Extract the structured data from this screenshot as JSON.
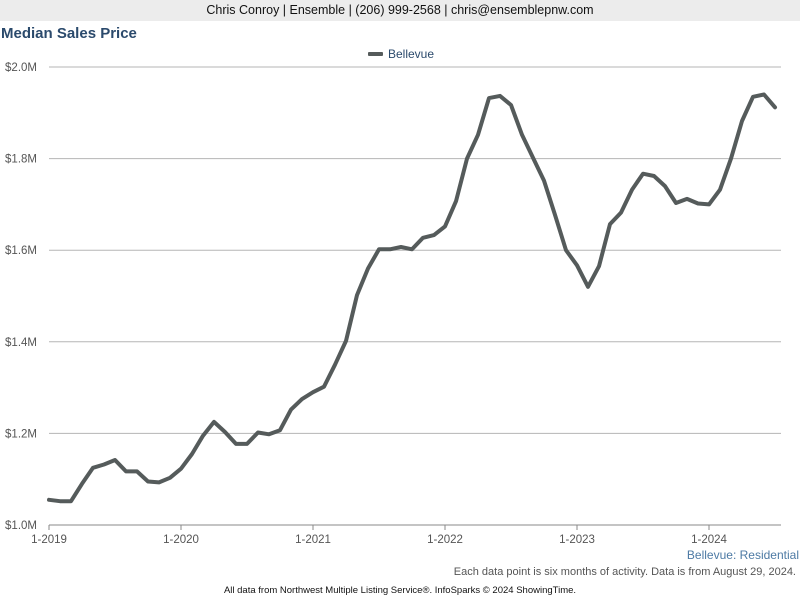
{
  "header": {
    "contact": "Chris Conroy | Ensemble | (206) 999-2568 | chris@ensemblepnw.com"
  },
  "chart_data": {
    "type": "line",
    "title": "Median Sales Price",
    "xlabel": "",
    "ylabel": "",
    "x_ticks": [
      "1-2019",
      "1-2020",
      "1-2021",
      "1-2022",
      "1-2023",
      "1-2024"
    ],
    "y_ticks": [
      "$1.0M",
      "$1.2M",
      "$1.4M",
      "$1.6M",
      "$1.8M",
      "$2.0M"
    ],
    "y_tick_values": [
      1.0,
      1.2,
      1.4,
      1.6,
      1.8,
      2.0
    ],
    "ylim": [
      1.0,
      2.0
    ],
    "xlim": [
      "2019-01",
      "2024-07"
    ],
    "grid": "horizontal",
    "legend_position": "top-center",
    "series": [
      {
        "name": "Bellevue",
        "color": "#555b5b",
        "x": [
          "2019-01",
          "2019-02",
          "2019-03",
          "2019-04",
          "2019-05",
          "2019-06",
          "2019-07",
          "2019-08",
          "2019-09",
          "2019-10",
          "2019-11",
          "2019-12",
          "2020-01",
          "2020-02",
          "2020-03",
          "2020-04",
          "2020-05",
          "2020-06",
          "2020-07",
          "2020-08",
          "2020-09",
          "2020-10",
          "2020-11",
          "2020-12",
          "2021-01",
          "2021-02",
          "2021-03",
          "2021-04",
          "2021-05",
          "2021-06",
          "2021-07",
          "2021-08",
          "2021-09",
          "2021-10",
          "2021-11",
          "2021-12",
          "2022-01",
          "2022-02",
          "2022-03",
          "2022-04",
          "2022-05",
          "2022-06",
          "2022-07",
          "2022-08",
          "2022-09",
          "2022-10",
          "2022-11",
          "2022-12",
          "2023-01",
          "2023-02",
          "2023-03",
          "2023-04",
          "2023-05",
          "2023-06",
          "2023-07",
          "2023-08",
          "2023-09",
          "2023-10",
          "2023-11",
          "2023-12",
          "2024-01",
          "2024-02",
          "2024-03",
          "2024-04",
          "2024-05",
          "2024-06",
          "2024-07"
        ],
        "values": [
          1.055,
          1.052,
          1.052,
          1.09,
          1.125,
          1.132,
          1.142,
          1.117,
          1.117,
          1.095,
          1.093,
          1.103,
          1.123,
          1.155,
          1.195,
          1.225,
          1.203,
          1.177,
          1.177,
          1.202,
          1.198,
          1.207,
          1.252,
          1.275,
          1.29,
          1.302,
          1.35,
          1.402,
          1.502,
          1.56,
          1.602,
          1.602,
          1.607,
          1.602,
          1.627,
          1.633,
          1.652,
          1.707,
          1.8,
          1.852,
          1.932,
          1.937,
          1.917,
          1.852,
          1.802,
          1.752,
          1.677,
          1.6,
          1.567,
          1.52,
          1.565,
          1.657,
          1.682,
          1.732,
          1.767,
          1.762,
          1.74,
          1.703,
          1.712,
          1.702,
          1.7,
          1.732,
          1.8,
          1.882,
          1.935,
          1.94,
          1.912
        ]
      }
    ]
  },
  "footer": {
    "series_tag": "Bellevue: Residential",
    "note": "Each data point is six months of activity. Data is from August 29, 2024.",
    "credits": "All data from Northwest Multiple Listing Service®. InfoSparks © 2024 ShowingTime."
  }
}
